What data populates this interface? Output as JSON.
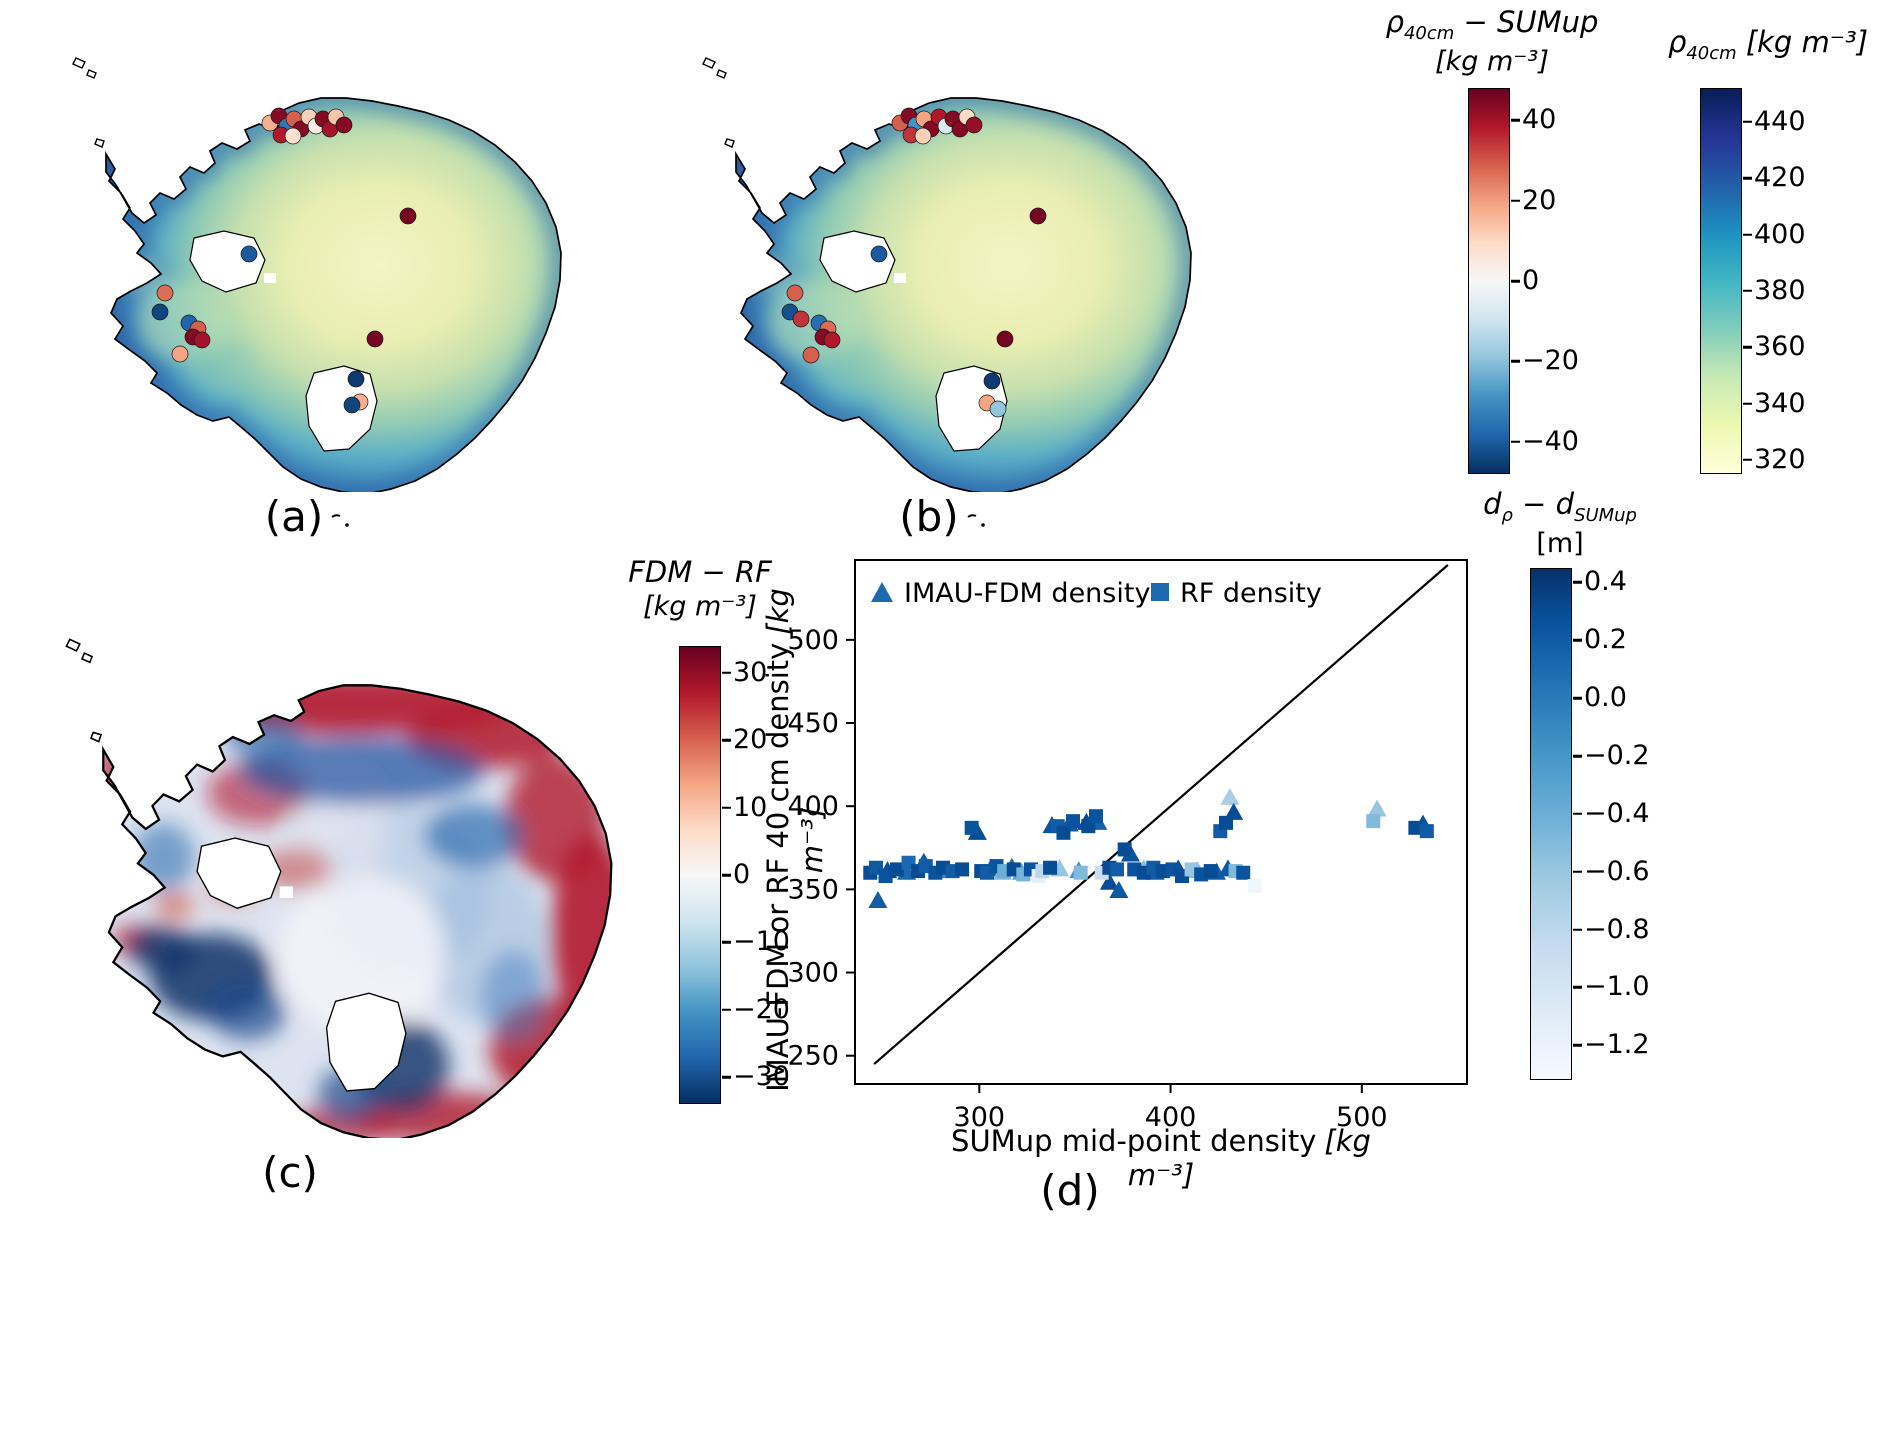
{
  "panel_labels": {
    "a": "(a)",
    "b": "(b)",
    "c": "(c)",
    "d": "(d)"
  },
  "colormaps": {
    "RdBu_r": [
      [
        0,
        "#053061"
      ],
      [
        0.1,
        "#2166ac"
      ],
      [
        0.2,
        "#4393c3"
      ],
      [
        0.3,
        "#92c5de"
      ],
      [
        0.4,
        "#d1e5f0"
      ],
      [
        0.5,
        "#f7f7f7"
      ],
      [
        0.6,
        "#fddbc7"
      ],
      [
        0.7,
        "#f4a582"
      ],
      [
        0.8,
        "#d6604d"
      ],
      [
        0.9,
        "#b2182b"
      ],
      [
        1,
        "#67001f"
      ]
    ],
    "YlGnBu": [
      [
        0,
        "#ffffd9"
      ],
      [
        0.125,
        "#edf8b1"
      ],
      [
        0.25,
        "#c7e9b4"
      ],
      [
        0.375,
        "#7fcdbb"
      ],
      [
        0.5,
        "#41b6c4"
      ],
      [
        0.625,
        "#1d91c0"
      ],
      [
        0.75,
        "#225ea8"
      ],
      [
        0.875,
        "#253494"
      ],
      [
        1,
        "#081d58"
      ]
    ],
    "Blues": [
      [
        0,
        "#f7fbff"
      ],
      [
        0.13,
        "#deebf7"
      ],
      [
        0.26,
        "#c6dbef"
      ],
      [
        0.39,
        "#9ecae1"
      ],
      [
        0.52,
        "#6baed6"
      ],
      [
        0.65,
        "#4292c6"
      ],
      [
        0.78,
        "#2171b5"
      ],
      [
        0.9,
        "#08519c"
      ],
      [
        1,
        "#08306b"
      ]
    ]
  },
  "colorbars": {
    "rho_diff": {
      "cmap": "RdBu_r",
      "vmin": -48,
      "vmax": 48,
      "title": {
        "sym": "ρ",
        "sub": "40cm",
        "rest": " − SUMup"
      },
      "units": "[kg m⁻³]",
      "ticks": [
        {
          "v": 40,
          "label": "40"
        },
        {
          "v": 20,
          "label": "20"
        },
        {
          "v": 0,
          "label": "0"
        },
        {
          "v": -20,
          "label": "−20"
        },
        {
          "v": -40,
          "label": "−40"
        }
      ]
    },
    "rho40": {
      "cmap": "YlGnBu",
      "vmin": 315,
      "vmax": 452,
      "title": {
        "sym": "ρ",
        "sub": "40cm",
        "rest": " [kg m⁻³]"
      },
      "ticks": [
        {
          "v": 440,
          "label": "440"
        },
        {
          "v": 420,
          "label": "420"
        },
        {
          "v": 400,
          "label": "400"
        },
        {
          "v": 380,
          "label": "380"
        },
        {
          "v": 360,
          "label": "360"
        },
        {
          "v": 340,
          "label": "340"
        },
        {
          "v": 320,
          "label": "320"
        }
      ]
    },
    "fdm_rf": {
      "cmap": "RdBu_r",
      "vmin": -34,
      "vmax": 34,
      "title": "FDM − RF",
      "units": "[kg m⁻³]",
      "ticks": [
        {
          "v": 30,
          "label": "30"
        },
        {
          "v": 20,
          "label": "20"
        },
        {
          "v": 10,
          "label": "10"
        },
        {
          "v": 0,
          "label": "0"
        },
        {
          "v": -10,
          "label": "−10"
        },
        {
          "v": -20,
          "label": "−20"
        },
        {
          "v": -30,
          "label": "−30"
        }
      ]
    },
    "depth_diff": {
      "cmap": "Blues",
      "vmin": -1.32,
      "vmax": 0.45,
      "title": {
        "p1": "d",
        "s1": "ρ",
        "p2": " − d",
        "s2": "SUMup"
      },
      "units": "[m]",
      "ticks": [
        {
          "v": 0.4,
          "label": "0.4"
        },
        {
          "v": 0.2,
          "label": "0.2"
        },
        {
          "v": 0.0,
          "label": "0.0"
        },
        {
          "v": -0.2,
          "label": "−0.2"
        },
        {
          "v": -0.4,
          "label": "−0.4"
        },
        {
          "v": -0.6,
          "label": "−0.6"
        },
        {
          "v": -0.8,
          "label": "−0.8"
        },
        {
          "v": -1.0,
          "label": "−1.0"
        },
        {
          "v": -1.2,
          "label": "−1.2"
        }
      ]
    }
  },
  "scatter_labels": {
    "xlabel": "SUMup mid-point density",
    "xunits": "[kg m⁻³]",
    "ylabel": "IMAU-FDM or RF 40 cm density",
    "yunits": "[kg m⁻³]"
  },
  "chart_data": [
    {
      "panel": "a",
      "type": "scatter-map",
      "variable": "ρ40cm − SUMup",
      "units": "kg m⁻³",
      "cmap": "RdBu_r",
      "vmin": -50,
      "vmax": 50,
      "points": [
        [
          252,
          101,
          18
        ],
        [
          261,
          94,
          46
        ],
        [
          269,
          104,
          -36
        ],
        [
          276,
          97,
          30
        ],
        [
          283,
          107,
          46
        ],
        [
          291,
          95,
          12
        ],
        [
          298,
          104,
          4
        ],
        [
          305,
          97,
          46
        ],
        [
          312,
          107,
          42
        ],
        [
          318,
          95,
          14
        ],
        [
          326,
          103,
          46
        ],
        [
          263,
          113,
          40
        ],
        [
          275,
          114,
          8
        ],
        [
          390,
          194,
          48
        ],
        [
          231,
          232,
          -42
        ],
        [
          147,
          271,
          28
        ],
        [
          142,
          290,
          -46
        ],
        [
          171,
          301,
          -40
        ],
        [
          180,
          307,
          30
        ],
        [
          175,
          315,
          46
        ],
        [
          184,
          318,
          42
        ],
        [
          162,
          332,
          20
        ],
        [
          357,
          317,
          48
        ],
        [
          338,
          357,
          -48
        ],
        [
          342,
          380,
          18
        ],
        [
          334,
          383,
          -46
        ]
      ]
    },
    {
      "panel": "b",
      "type": "scatter-map",
      "variable": "ρ40cm − SUMup",
      "units": "kg m⁻³",
      "cmap": "RdBu_r",
      "vmin": -50,
      "vmax": 50,
      "points": [
        [
          252,
          101,
          30
        ],
        [
          261,
          94,
          46
        ],
        [
          268,
          103,
          -30
        ],
        [
          276,
          97,
          20
        ],
        [
          283,
          107,
          46
        ],
        [
          291,
          95,
          40
        ],
        [
          298,
          104,
          -8
        ],
        [
          305,
          97,
          46
        ],
        [
          312,
          107,
          46
        ],
        [
          319,
          95,
          10
        ],
        [
          326,
          103,
          44
        ],
        [
          263,
          113,
          36
        ],
        [
          275,
          114,
          12
        ],
        [
          390,
          194,
          48
        ],
        [
          231,
          232,
          -42
        ],
        [
          147,
          271,
          30
        ],
        [
          142,
          290,
          -44
        ],
        [
          153,
          297,
          36
        ],
        [
          171,
          301,
          -38
        ],
        [
          180,
          307,
          28
        ],
        [
          175,
          315,
          46
        ],
        [
          184,
          318,
          40
        ],
        [
          163,
          333,
          30
        ],
        [
          357,
          317,
          48
        ],
        [
          344,
          359,
          -48
        ],
        [
          339,
          381,
          20
        ],
        [
          350,
          387,
          -20
        ]
      ]
    },
    {
      "panel": "c",
      "type": "map",
      "variable": "FDM − RF",
      "units": "kg m⁻³",
      "cmap": "RdBu_r",
      "value_range": [
        -34,
        34
      ],
      "note": "spatial difference field, red = FDM denser, blue = RF denser"
    },
    {
      "panel": "d",
      "type": "scatter",
      "cmap": "Blues",
      "color_range": [
        -1.32,
        0.45
      ],
      "color_variable": "dρ − dSUMup [m]",
      "xlim": [
        235,
        555
      ],
      "ylim": [
        233,
        548
      ],
      "xticks": [
        300,
        400,
        500
      ],
      "yticks": [
        250,
        300,
        350,
        400,
        450,
        500
      ],
      "identity_line": [
        245,
        545
      ],
      "series": [
        {
          "name": "IMAU-FDM density",
          "marker": "triangle",
          "points": [
            [
              247,
              343,
              0.2
            ],
            [
              252,
              361,
              0.3
            ],
            [
              262,
              360,
              0.12
            ],
            [
              271,
              366,
              0.22
            ],
            [
              284,
              361,
              -0.1
            ],
            [
              299,
              384,
              0.3
            ],
            [
              306,
              362,
              0.2
            ],
            [
              312,
              360,
              -0.5
            ],
            [
              317,
              363,
              0.1
            ],
            [
              322,
              360,
              -0.3
            ],
            [
              338,
              388,
              0.26
            ],
            [
              342,
              362,
              -0.6
            ],
            [
              347,
              389,
              0.2
            ],
            [
              352,
              361,
              -0.2
            ],
            [
              356,
              390,
              0.3
            ],
            [
              362,
              390,
              0.16
            ],
            [
              368,
              354,
              0.3
            ],
            [
              373,
              349,
              0.22
            ],
            [
              379,
              371,
              0.26
            ],
            [
              386,
              362,
              -0.55
            ],
            [
              392,
              360,
              0.2
            ],
            [
              404,
              362,
              0.3
            ],
            [
              414,
              361,
              -0.5
            ],
            [
              424,
              360,
              0.2
            ],
            [
              431,
              405,
              -0.7
            ],
            [
              433,
              396,
              0.3
            ],
            [
              430,
              362,
              0.22
            ],
            [
              508,
              398,
              -0.6
            ],
            [
              532,
              389,
              0.26
            ]
          ]
        },
        {
          "name": "RF density",
          "marker": "square",
          "points": [
            [
              243,
              360,
              0.3
            ],
            [
              246,
              363,
              0.22
            ],
            [
              251,
              358,
              0.26
            ],
            [
              257,
              362,
              0.3
            ],
            [
              263,
              366,
              0.12
            ],
            [
              268,
              361,
              0.3
            ],
            [
              272,
              364,
              0.2
            ],
            [
              277,
              360,
              0.26
            ],
            [
              281,
              363,
              0.3
            ],
            [
              286,
              361,
              0.2
            ],
            [
              291,
              362,
              0.3
            ],
            [
              296,
              387,
              0.26
            ],
            [
              301,
              361,
              0.3
            ],
            [
              304,
              360,
              0.2
            ],
            [
              309,
              364,
              0.26
            ],
            [
              313,
              361,
              -0.4
            ],
            [
              318,
              362,
              0.3
            ],
            [
              323,
              359,
              -0.45
            ],
            [
              327,
              362,
              0.26
            ],
            [
              331,
              358,
              -1.15
            ],
            [
              333,
              361,
              -0.8
            ],
            [
              337,
              363,
              0.3
            ],
            [
              341,
              388,
              0.2
            ],
            [
              344,
              384,
              0.3
            ],
            [
              349,
              391,
              0.26
            ],
            [
              353,
              360,
              -0.5
            ],
            [
              357,
              388,
              0.3
            ],
            [
              361,
              394,
              0.26
            ],
            [
              364,
              360,
              -0.9
            ],
            [
              368,
              363,
              0.3
            ],
            [
              372,
              362,
              0.2
            ],
            [
              376,
              374,
              0.3
            ],
            [
              381,
              362,
              0.26
            ],
            [
              386,
              360,
              0.3
            ],
            [
              391,
              363,
              0.2
            ],
            [
              396,
              361,
              0.3
            ],
            [
              401,
              362,
              0.26
            ],
            [
              406,
              358,
              0.3
            ],
            [
              411,
              362,
              -0.6
            ],
            [
              416,
              359,
              0.26
            ],
            [
              421,
              361,
              0.3
            ],
            [
              426,
              385,
              0.2
            ],
            [
              429,
              390,
              0.3
            ],
            [
              434,
              361,
              -0.5
            ],
            [
              438,
              360,
              0.26
            ],
            [
              444,
              352,
              -1.25
            ],
            [
              506,
              391,
              -0.5
            ],
            [
              528,
              387,
              0.3
            ],
            [
              534,
              385,
              0.2
            ]
          ]
        }
      ]
    }
  ]
}
